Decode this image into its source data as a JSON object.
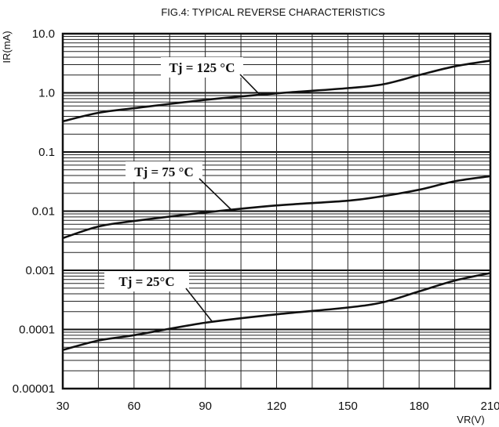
{
  "chart_data": {
    "type": "line",
    "title": "FIG.4: TYPICAL REVERSE CHARACTERISTICS",
    "xlabel": "VR(V)",
    "ylabel": "IR(mA)",
    "xlim": [
      30,
      210
    ],
    "ylim": [
      1e-05,
      10.0
    ],
    "yscale": "log",
    "grid": true,
    "x_ticks": [
      30,
      60,
      90,
      120,
      150,
      180,
      210
    ],
    "x_tick_labels": [
      "30",
      "60",
      "90",
      "120",
      "150",
      "180",
      "210"
    ],
    "y_ticks": [
      1e-05,
      0.0001,
      0.001,
      0.01,
      0.1,
      1.0,
      10.0
    ],
    "y_tick_labels": [
      "0.00001",
      "0.0001",
      "0.001",
      "0.01",
      "0.1",
      "1.0",
      "10.0"
    ],
    "x": [
      30,
      45,
      60,
      90,
      120,
      150,
      165,
      180,
      195,
      210
    ],
    "series": [
      {
        "name": "Tj = 125 °C",
        "values": [
          0.33,
          0.46,
          0.55,
          0.76,
          0.98,
          1.2,
          1.4,
          2.0,
          2.8,
          3.5
        ]
      },
      {
        "name": "Tj = 75 °C",
        "values": [
          0.0035,
          0.0055,
          0.0068,
          0.0095,
          0.0125,
          0.015,
          0.018,
          0.023,
          0.032,
          0.039
        ]
      },
      {
        "name": "Tj = 25°C",
        "values": [
          4.5e-05,
          6.5e-05,
          8e-05,
          0.00013,
          0.00018,
          0.000235,
          0.00029,
          0.00044,
          0.00067,
          0.0009
        ]
      }
    ],
    "annotations": [
      {
        "text": "Tj = 125 °C",
        "series": 0,
        "x": 113
      },
      {
        "text": "Tj = 75 °C",
        "series": 1,
        "x": 101
      },
      {
        "text": "Tj = 25°C",
        "series": 2,
        "x": 93
      }
    ]
  }
}
